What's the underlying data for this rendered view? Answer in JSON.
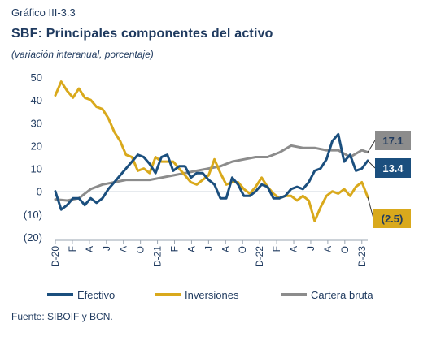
{
  "figure": {
    "label": "Gráfico III-3.3",
    "title": "SBF: Principales componentes del activo",
    "subtitle": "(variación interanual, porcentaje)",
    "source": "Fuente: SIBOIF y BCN."
  },
  "colors": {
    "efectivo": "#1b4f7e",
    "inversiones": "#d9a91c",
    "cartera": "#8c8c8c",
    "text": "#1f3a5f"
  },
  "chart_data": {
    "type": "line",
    "ylim": [
      -20,
      50
    ],
    "yticks": [
      {
        "value": 50,
        "label": "50"
      },
      {
        "value": 40,
        "label": "40"
      },
      {
        "value": 30,
        "label": "30"
      },
      {
        "value": 20,
        "label": "20"
      },
      {
        "value": 10,
        "label": "10"
      },
      {
        "value": 0,
        "label": "0"
      },
      {
        "value": -10,
        "label": "(10)"
      },
      {
        "value": -20,
        "label": "(20)"
      }
    ],
    "x_ticks": [
      "D-20",
      "F",
      "A",
      "J",
      "A",
      "O",
      "D-21",
      "F",
      "A",
      "J",
      "A",
      "O",
      "D-22",
      "F",
      "A",
      "J",
      "A",
      "O",
      "D-23"
    ],
    "grid": false,
    "legend": "bottom",
    "series": [
      {
        "name": "Efectivo",
        "color_key": "efectivo",
        "points": [
          [
            0,
            0
          ],
          [
            0.5,
            -8
          ],
          [
            1,
            -6
          ],
          [
            1.5,
            -3
          ],
          [
            2,
            -3
          ],
          [
            2.5,
            -6
          ],
          [
            3,
            -3
          ],
          [
            3.5,
            -5
          ],
          [
            4,
            -3
          ],
          [
            4.5,
            1
          ],
          [
            5,
            4
          ],
          [
            5.5,
            7
          ],
          [
            6,
            10
          ],
          [
            6.5,
            13
          ],
          [
            7,
            16
          ],
          [
            7.5,
            15
          ],
          [
            8,
            12
          ],
          [
            8.5,
            8
          ],
          [
            9,
            15
          ],
          [
            9.5,
            16
          ],
          [
            10,
            9
          ],
          [
            10.5,
            11
          ],
          [
            11,
            11
          ],
          [
            11.5,
            6
          ],
          [
            12,
            8
          ],
          [
            12.5,
            8
          ],
          [
            13,
            5
          ],
          [
            13.5,
            3
          ],
          [
            14,
            -3
          ],
          [
            14.5,
            -3
          ],
          [
            15,
            6
          ],
          [
            15.5,
            3
          ],
          [
            16,
            -2
          ],
          [
            16.5,
            -2
          ],
          [
            17,
            0
          ],
          [
            17.5,
            3
          ],
          [
            18,
            2
          ],
          [
            18.5,
            -3
          ],
          [
            19,
            -3
          ],
          [
            19.5,
            -2
          ],
          [
            20,
            1
          ],
          [
            20.5,
            2
          ],
          [
            21,
            1
          ],
          [
            21.5,
            4
          ],
          [
            22,
            9
          ],
          [
            22.5,
            10
          ],
          [
            23,
            14
          ],
          [
            23.5,
            22
          ],
          [
            24,
            25
          ],
          [
            24.5,
            13
          ],
          [
            25,
            16
          ],
          [
            25.5,
            9
          ],
          [
            26,
            10
          ],
          [
            26.5,
            13.4
          ]
        ],
        "end_label": "13.4"
      },
      {
        "name": "Inversiones",
        "color_key": "inversiones",
        "points": [
          [
            0,
            42
          ],
          [
            0.5,
            48
          ],
          [
            1,
            44
          ],
          [
            1.5,
            41
          ],
          [
            2,
            45
          ],
          [
            2.5,
            41
          ],
          [
            3,
            40
          ],
          [
            3.5,
            37
          ],
          [
            4,
            36
          ],
          [
            4.5,
            32
          ],
          [
            5,
            26
          ],
          [
            5.5,
            22
          ],
          [
            6,
            16
          ],
          [
            6.5,
            15
          ],
          [
            7,
            9
          ],
          [
            7.5,
            10
          ],
          [
            8,
            8
          ],
          [
            8.5,
            15
          ],
          [
            9,
            13
          ],
          [
            9.5,
            13
          ],
          [
            10,
            13
          ],
          [
            10.5,
            10
          ],
          [
            11,
            7
          ],
          [
            11.5,
            4
          ],
          [
            12,
            3
          ],
          [
            12.5,
            5
          ],
          [
            13,
            7
          ],
          [
            13.5,
            14
          ],
          [
            14,
            8
          ],
          [
            14.5,
            3
          ],
          [
            15,
            4
          ],
          [
            15.5,
            4
          ],
          [
            16,
            1
          ],
          [
            16.5,
            -1
          ],
          [
            17,
            2
          ],
          [
            17.5,
            6
          ],
          [
            18,
            2
          ],
          [
            18.5,
            -1
          ],
          [
            19,
            -3
          ],
          [
            19.5,
            -2
          ],
          [
            20,
            -2
          ],
          [
            20.5,
            -4
          ],
          [
            21,
            -2
          ],
          [
            21.5,
            -4
          ],
          [
            22,
            -13
          ],
          [
            22.5,
            -7
          ],
          [
            23,
            -2
          ],
          [
            23.5,
            0
          ],
          [
            24,
            -1
          ],
          [
            24.5,
            1
          ],
          [
            25,
            -2
          ],
          [
            25.5,
            2
          ],
          [
            26,
            4
          ],
          [
            26.5,
            -2.5
          ]
        ],
        "end_label": "(2.5)"
      },
      {
        "name": "Cartera bruta",
        "color_key": "cartera",
        "points": [
          [
            0,
            -3.5
          ],
          [
            1,
            -4
          ],
          [
            2,
            -3
          ],
          [
            3,
            1
          ],
          [
            4,
            3
          ],
          [
            5,
            4
          ],
          [
            6,
            5
          ],
          [
            7,
            5
          ],
          [
            8,
            5
          ],
          [
            9,
            6
          ],
          [
            10,
            7
          ],
          [
            11,
            8
          ],
          [
            12,
            9
          ],
          [
            13,
            10
          ],
          [
            14,
            11
          ],
          [
            15,
            13
          ],
          [
            16,
            14
          ],
          [
            17,
            15
          ],
          [
            18,
            15
          ],
          [
            19,
            17
          ],
          [
            20,
            20
          ],
          [
            21,
            19
          ],
          [
            22,
            19
          ],
          [
            23,
            18
          ],
          [
            24,
            18
          ],
          [
            25,
            15
          ],
          [
            26,
            18
          ],
          [
            26.5,
            17.1
          ]
        ],
        "end_label": "17.1"
      }
    ]
  },
  "legend_items": [
    {
      "label": "Efectivo",
      "color_key": "efectivo"
    },
    {
      "label": "Inversiones",
      "color_key": "inversiones"
    },
    {
      "label": "Cartera bruta",
      "color_key": "cartera"
    }
  ]
}
